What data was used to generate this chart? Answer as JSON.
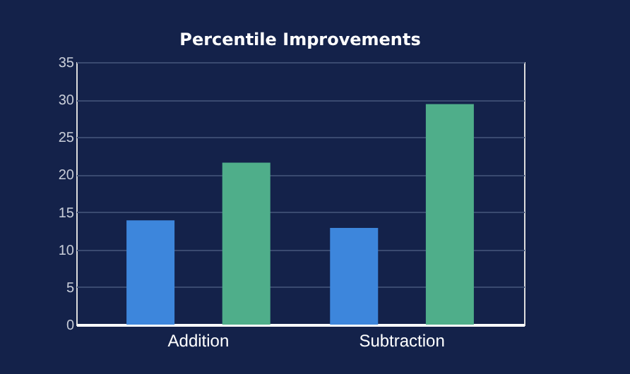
{
  "chart_data": {
    "type": "bar",
    "title": "Percentile Improvements",
    "categories": [
      "Addition",
      "Subtraction"
    ],
    "series": [
      {
        "color": "#3d86dc",
        "values": [
          13.9,
          12.9
        ]
      },
      {
        "color": "#4fae8a",
        "values": [
          21.6,
          29.4
        ]
      }
    ],
    "ylim": [
      0,
      35
    ],
    "yticks": [
      0,
      5,
      10,
      15,
      20,
      25,
      30,
      35
    ],
    "grid": "y"
  }
}
